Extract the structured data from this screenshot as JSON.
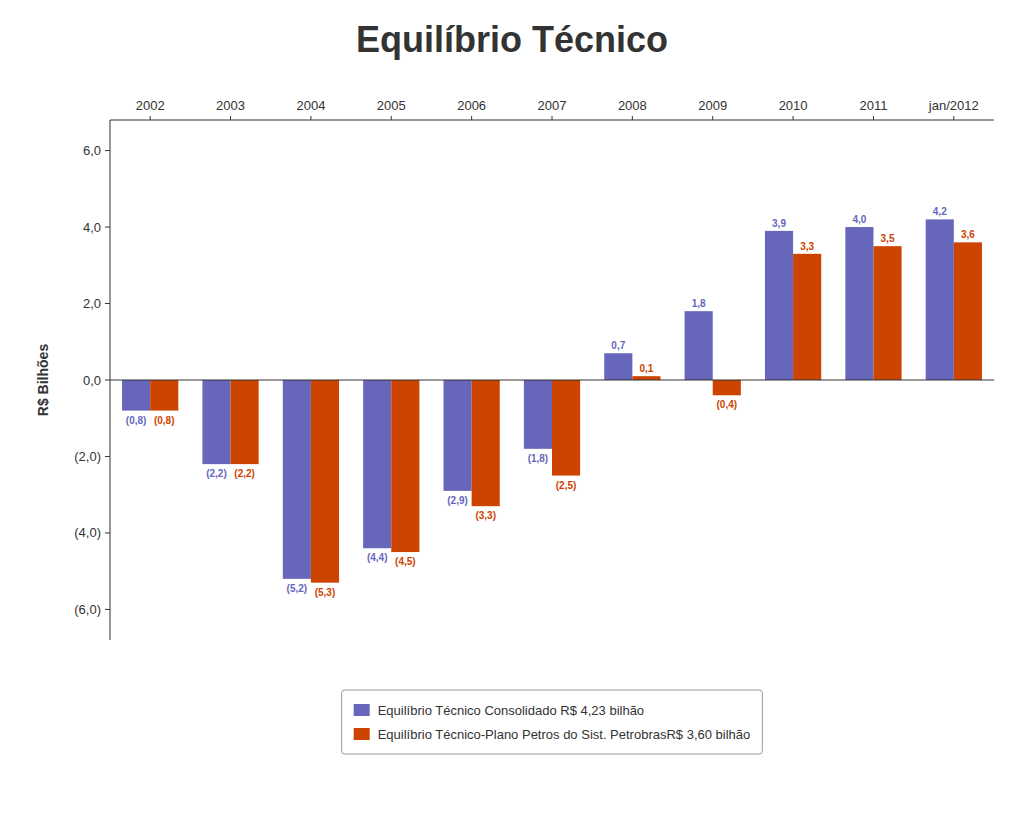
{
  "chart_data": {
    "type": "bar",
    "title": "Equilíbrio Técnico",
    "y_label": "R$ Bilhões",
    "categories": [
      "2002",
      "2003",
      "2004",
      "2005",
      "2006",
      "2007",
      "2008",
      "2009",
      "2010",
      "2011",
      "jan/2012"
    ],
    "series": [
      {
        "name": "Equilíbrio Técnico Consolidado R$ 4,23 bilhão",
        "color": "#6666bb",
        "values": [
          -0.8,
          -2.2,
          -5.2,
          -4.4,
          -2.9,
          -1.8,
          0.7,
          1.8,
          3.9,
          4.0,
          4.2
        ],
        "value_labels": [
          "(0,8)",
          "(2,2)",
          "(5,2)",
          "(4,4)",
          "(2,9)",
          "(1,8)",
          "0,7",
          "1,8",
          "3,9",
          "4,0",
          "4,2"
        ]
      },
      {
        "name": "Equilíbrio Técnico-Plano Petros do Sist. PetrobrasR$ 3,60 bilhão",
        "color": "#cc4400",
        "values": [
          -0.8,
          -2.2,
          -5.3,
          -4.5,
          -3.3,
          -2.5,
          0.1,
          -0.4,
          3.3,
          3.5,
          3.6
        ],
        "value_labels": [
          "(0,8)",
          "(2,2)",
          "(5,3)",
          "(4,5)",
          "(3,3)",
          "(2,5)",
          "0,1",
          "(0,4)",
          "3,3",
          "3,5",
          "3,6"
        ]
      }
    ],
    "ylim": [
      -6.8,
      6.8
    ],
    "yticks": [
      {
        "value": -6.0,
        "label": "(6,0)"
      },
      {
        "value": -4.0,
        "label": "(4,0)"
      },
      {
        "value": -2.0,
        "label": "(2,0)"
      },
      {
        "value": 0.0,
        "label": "0,0"
      },
      {
        "value": 2.0,
        "label": "2,0"
      },
      {
        "value": 4.0,
        "label": "4,0"
      },
      {
        "value": 6.0,
        "label": "6,0"
      }
    ],
    "grid": false,
    "legend": "bottom",
    "data_labels": true
  }
}
